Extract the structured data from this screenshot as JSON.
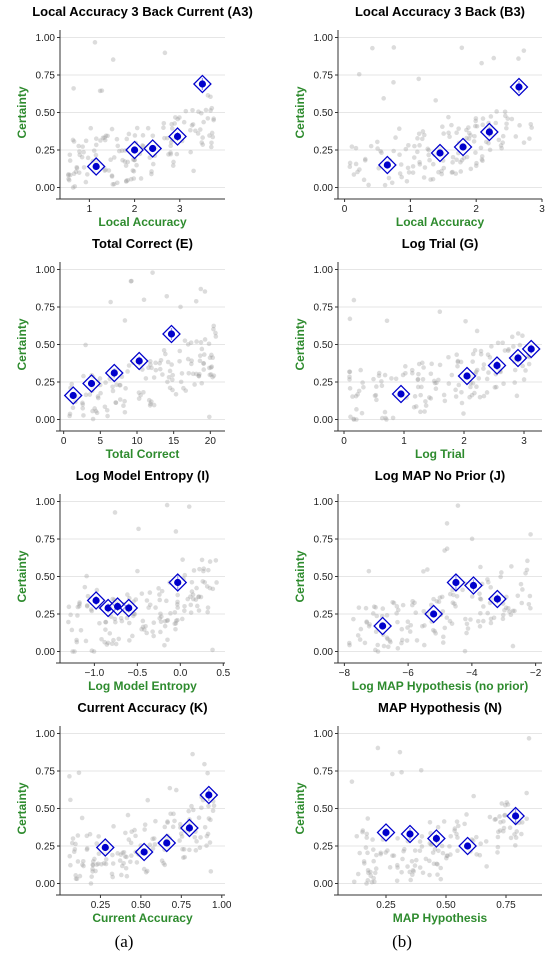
{
  "captions": [
    "(a)",
    "(b)"
  ],
  "colors": {
    "axis_label": "#2e8b2e",
    "marker": "#0000cc",
    "points": "#9a9a9a",
    "grid": "#e6e6e6"
  },
  "chart_data": [
    {
      "type": "scatter",
      "title": "Local Accuracy 3 Back Current (A3)",
      "xlabel": "Local Accuracy",
      "ylabel": "Certainty",
      "xlim": [
        0.35,
        4.0
      ],
      "ylim": [
        -0.05,
        1.05
      ],
      "xticks": [
        1,
        2,
        3
      ],
      "yticks": [
        0.0,
        0.25,
        0.5,
        0.75,
        1.0
      ],
      "yticklabels": [
        "0.00",
        "0.25",
        "0.50",
        "0.75",
        "1.00"
      ],
      "grid": true,
      "bins": [
        {
          "x": 1.15,
          "y": 0.14,
          "err": 0.02
        },
        {
          "x": 2.0,
          "y": 0.25,
          "err": 0.02
        },
        {
          "x": 2.4,
          "y": 0.26,
          "err": 0.02
        },
        {
          "x": 2.95,
          "y": 0.34,
          "err": 0.03
        },
        {
          "x": 3.5,
          "y": 0.69,
          "err": 0.04
        }
      ]
    },
    {
      "type": "scatter",
      "title": "Local Accuracy 3 Back (B3)",
      "xlabel": "Local Accuracy",
      "ylabel": "Certainty",
      "xlim": [
        -0.1,
        3.0
      ],
      "ylim": [
        -0.05,
        1.05
      ],
      "xticks": [
        0,
        1,
        2,
        3
      ],
      "yticks": [
        0.0,
        0.25,
        0.5,
        0.75,
        1.0
      ],
      "yticklabels": [
        "0.00",
        "0.25",
        "0.50",
        "0.75",
        "1.00"
      ],
      "grid": true,
      "bins": [
        {
          "x": 0.65,
          "y": 0.15,
          "err": 0.02
        },
        {
          "x": 1.45,
          "y": 0.23,
          "err": 0.02
        },
        {
          "x": 1.8,
          "y": 0.27,
          "err": 0.02
        },
        {
          "x": 2.2,
          "y": 0.37,
          "err": 0.03
        },
        {
          "x": 2.65,
          "y": 0.67,
          "err": 0.04
        }
      ]
    },
    {
      "type": "scatter",
      "title": "Total Correct (E)",
      "xlabel": "Total Correct",
      "ylabel": "Certainty",
      "xlim": [
        -0.5,
        22.0
      ],
      "ylim": [
        -0.05,
        1.05
      ],
      "xticks": [
        0,
        5,
        10,
        15,
        20
      ],
      "yticks": [
        0.0,
        0.25,
        0.5,
        0.75,
        1.0
      ],
      "yticklabels": [
        "0.00",
        "0.25",
        "0.50",
        "0.75",
        "1.00"
      ],
      "grid": true,
      "bins": [
        {
          "x": 1.3,
          "y": 0.16,
          "err": 0.02
        },
        {
          "x": 3.8,
          "y": 0.24,
          "err": 0.02
        },
        {
          "x": 6.9,
          "y": 0.31,
          "err": 0.03
        },
        {
          "x": 10.3,
          "y": 0.39,
          "err": 0.03
        },
        {
          "x": 14.7,
          "y": 0.57,
          "err": 0.04
        }
      ]
    },
    {
      "type": "scatter",
      "title": "Log Trial (G)",
      "xlabel": "Log Trial",
      "ylabel": "Certainty",
      "xlim": [
        -0.1,
        3.3
      ],
      "ylim": [
        -0.05,
        1.05
      ],
      "xticks": [
        0,
        1,
        2,
        3
      ],
      "yticks": [
        0.0,
        0.25,
        0.5,
        0.75,
        1.0
      ],
      "yticklabels": [
        "0.00",
        "0.25",
        "0.50",
        "0.75",
        "1.00"
      ],
      "grid": true,
      "bins": [
        {
          "x": 0.95,
          "y": 0.17,
          "err": 0.02
        },
        {
          "x": 2.05,
          "y": 0.29,
          "err": 0.02
        },
        {
          "x": 2.55,
          "y": 0.36,
          "err": 0.03
        },
        {
          "x": 2.9,
          "y": 0.41,
          "err": 0.03
        },
        {
          "x": 3.12,
          "y": 0.47,
          "err": 0.03
        }
      ]
    },
    {
      "type": "scatter",
      "title": "Log Model Entropy (I)",
      "xlabel": "Log Model Entropy",
      "ylabel": "Certainty",
      "xlim": [
        -1.4,
        0.52
      ],
      "ylim": [
        -0.05,
        1.05
      ],
      "xticks": [
        -1.0,
        -0.5,
        0.0,
        0.5
      ],
      "xticklabels": [
        "−1.0",
        "−0.5",
        "0.0",
        "0.5"
      ],
      "yticks": [
        0.0,
        0.25,
        0.5,
        0.75,
        1.0
      ],
      "yticklabels": [
        "0.00",
        "0.25",
        "0.50",
        "0.75",
        "1.00"
      ],
      "grid": true,
      "bins": [
        {
          "x": -0.98,
          "y": 0.34,
          "err": 0.03
        },
        {
          "x": -0.84,
          "y": 0.29,
          "err": 0.03
        },
        {
          "x": -0.73,
          "y": 0.3,
          "err": 0.03
        },
        {
          "x": -0.6,
          "y": 0.29,
          "err": 0.03
        },
        {
          "x": -0.03,
          "y": 0.46,
          "err": 0.05
        }
      ]
    },
    {
      "type": "scatter",
      "title": "Log MAP No Prior (J)",
      "xlabel": "Log MAP Hypothesis (no prior)",
      "ylabel": "Certainty",
      "xlim": [
        -8.2,
        -1.8
      ],
      "ylim": [
        -0.05,
        1.05
      ],
      "xticks": [
        -8,
        -6,
        -4,
        -2
      ],
      "xticklabels": [
        "−8",
        "−6",
        "−4",
        "−2"
      ],
      "yticks": [
        0.0,
        0.25,
        0.5,
        0.75,
        1.0
      ],
      "yticklabels": [
        "0.00",
        "0.25",
        "0.50",
        "0.75",
        "1.00"
      ],
      "grid": true,
      "bins": [
        {
          "x": -6.8,
          "y": 0.17,
          "err": 0.02
        },
        {
          "x": -5.2,
          "y": 0.25,
          "err": 0.02
        },
        {
          "x": -4.5,
          "y": 0.46,
          "err": 0.05
        },
        {
          "x": -3.95,
          "y": 0.44,
          "err": 0.04
        },
        {
          "x": -3.2,
          "y": 0.35,
          "err": 0.03
        }
      ]
    },
    {
      "type": "scatter",
      "title": "Current Accuracy (K)",
      "xlabel": "Current Accuracy",
      "ylabel": "Certainty",
      "xlim": [
        0.0,
        1.02
      ],
      "ylim": [
        -0.05,
        1.05
      ],
      "xticks": [
        0.25,
        0.5,
        0.75,
        1.0
      ],
      "xticklabels": [
        "0.25",
        "0.50",
        "0.75",
        "1.00"
      ],
      "yticks": [
        0.0,
        0.25,
        0.5,
        0.75,
        1.0
      ],
      "yticklabels": [
        "0.00",
        "0.25",
        "0.50",
        "0.75",
        "1.00"
      ],
      "grid": true,
      "bins": [
        {
          "x": 0.28,
          "y": 0.24,
          "err": 0.02
        },
        {
          "x": 0.52,
          "y": 0.21,
          "err": 0.02
        },
        {
          "x": 0.66,
          "y": 0.27,
          "err": 0.02
        },
        {
          "x": 0.8,
          "y": 0.37,
          "err": 0.03
        },
        {
          "x": 0.92,
          "y": 0.59,
          "err": 0.04
        }
      ]
    },
    {
      "type": "scatter",
      "title": "MAP Hypothesis (N)",
      "xlabel": "MAP Hypothesis",
      "ylabel": "Certainty",
      "xlim": [
        0.05,
        0.9
      ],
      "ylim": [
        -0.05,
        1.05
      ],
      "xticks": [
        0.25,
        0.5,
        0.75
      ],
      "xticklabels": [
        "0.25",
        "0.50",
        "0.75"
      ],
      "yticks": [
        0.0,
        0.25,
        0.5,
        0.75,
        1.0
      ],
      "yticklabels": [
        "0.00",
        "0.25",
        "0.50",
        "0.75",
        "1.00"
      ],
      "grid": true,
      "bins": [
        {
          "x": 0.25,
          "y": 0.34,
          "err": 0.03
        },
        {
          "x": 0.35,
          "y": 0.33,
          "err": 0.04
        },
        {
          "x": 0.46,
          "y": 0.3,
          "err": 0.03
        },
        {
          "x": 0.59,
          "y": 0.25,
          "err": 0.02
        },
        {
          "x": 0.79,
          "y": 0.45,
          "err": 0.05
        }
      ]
    }
  ]
}
